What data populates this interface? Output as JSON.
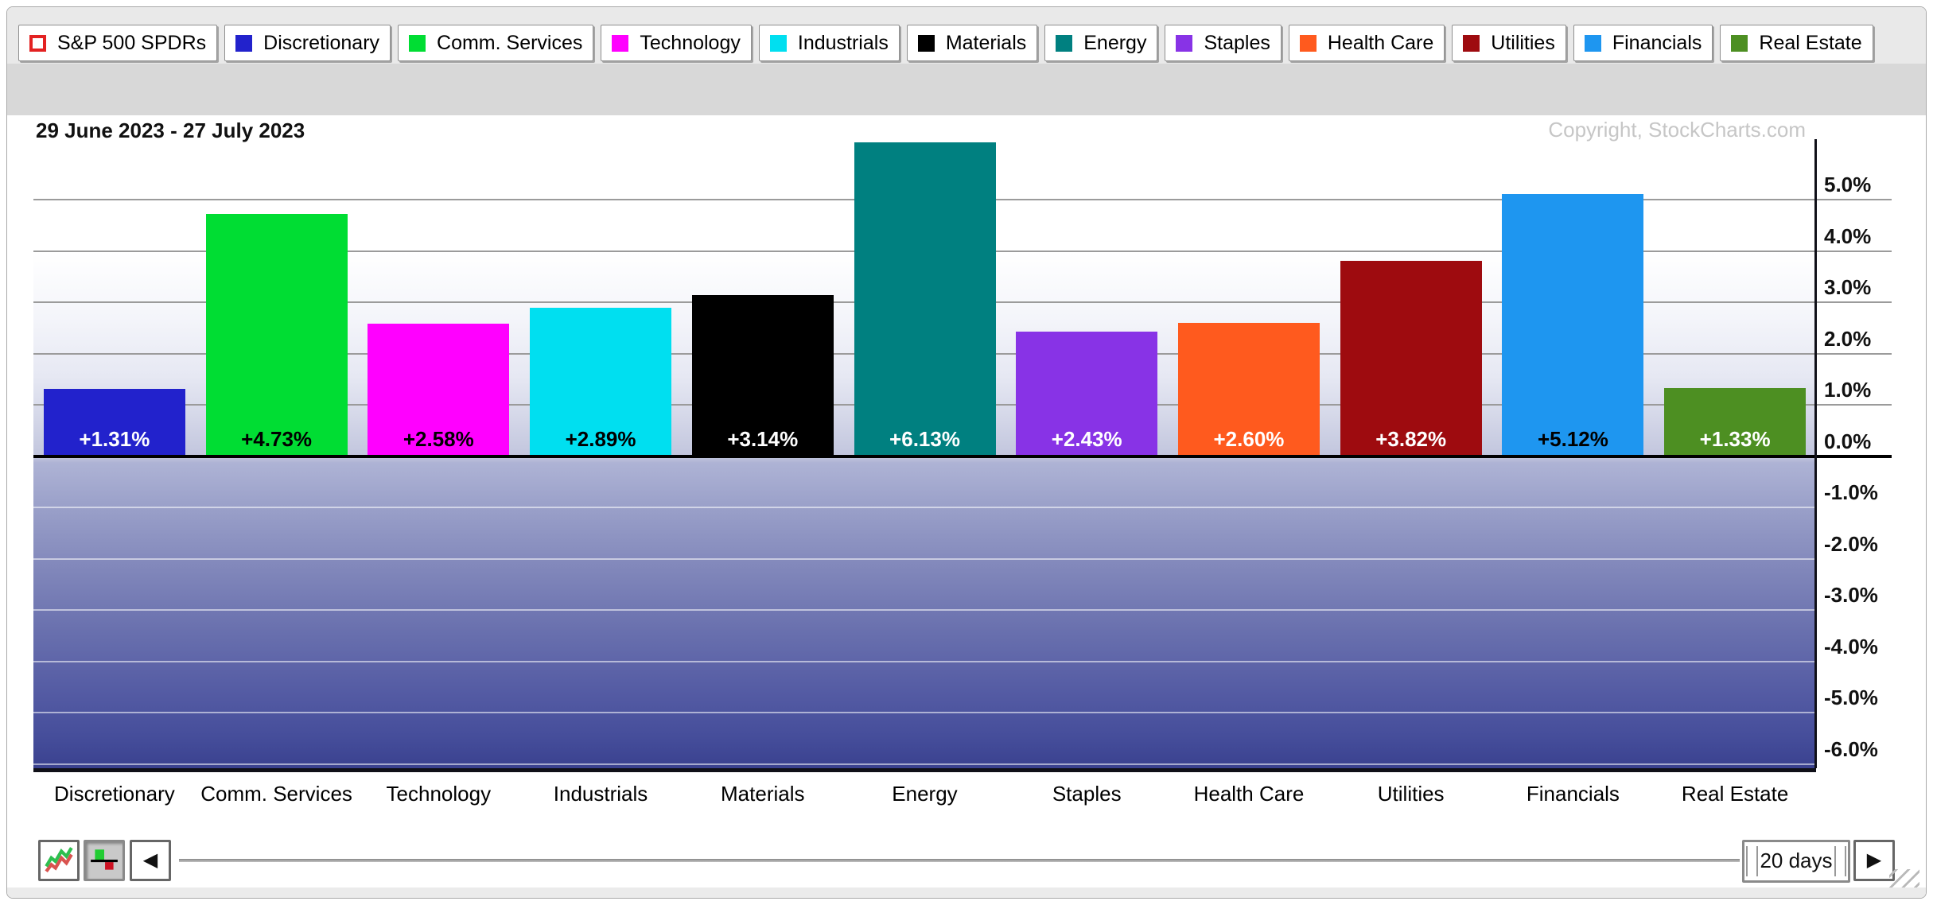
{
  "legend": {
    "items": [
      {
        "label": "S&P 500 SPDRs",
        "swatch_color": "#ffffff",
        "swatch_border": "#e32222",
        "filled": false
      },
      {
        "label": "Discretionary",
        "swatch_color": "#2222cc",
        "filled": true
      },
      {
        "label": "Comm. Services",
        "swatch_color": "#00dd33",
        "filled": true
      },
      {
        "label": "Technology",
        "swatch_color": "#ff00ff",
        "filled": true
      },
      {
        "label": "Industrials",
        "swatch_color": "#00dff0",
        "filled": true
      },
      {
        "label": "Materials",
        "swatch_color": "#000000",
        "filled": true
      },
      {
        "label": "Energy",
        "swatch_color": "#008080",
        "filled": true
      },
      {
        "label": "Staples",
        "swatch_color": "#8833e6",
        "filled": true
      },
      {
        "label": "Health Care",
        "swatch_color": "#ff5a1e",
        "filled": true
      },
      {
        "label": "Utilities",
        "swatch_color": "#9e0b0f",
        "filled": true
      },
      {
        "label": "Financials",
        "swatch_color": "#1e96f0",
        "filled": true
      },
      {
        "label": "Real Estate",
        "swatch_color": "#4d8f22",
        "filled": true
      }
    ]
  },
  "chart": {
    "date_range": "29 June 2023 - 27 July 2023",
    "copyright": "Copyright, StockCharts.com"
  },
  "chart_data": {
    "type": "bar",
    "title": "29 June 2023 - 27 July 2023",
    "categories": [
      "Discretionary",
      "Comm. Services",
      "Technology",
      "Industrials",
      "Materials",
      "Energy",
      "Staples",
      "Health Care",
      "Utilities",
      "Financials",
      "Real Estate"
    ],
    "values": [
      1.31,
      4.73,
      2.58,
      2.89,
      3.14,
      6.13,
      2.43,
      2.6,
      3.82,
      5.12,
      1.33
    ],
    "value_labels": [
      "+1.31%",
      "+4.73%",
      "+2.58%",
      "+2.89%",
      "+3.14%",
      "+6.13%",
      "+2.43%",
      "+2.60%",
      "+3.82%",
      "+5.12%",
      "+1.33%"
    ],
    "bar_colors": [
      "#2222cc",
      "#00dd33",
      "#ff00ff",
      "#00dff0",
      "#000000",
      "#008080",
      "#8833e6",
      "#ff5a1e",
      "#9e0b0f",
      "#1e96f0",
      "#4d8f22"
    ],
    "label_text_colors": [
      "#ffffff",
      "#000000",
      "#000000",
      "#000000",
      "#ffffff",
      "#ffffff",
      "#ffffff",
      "#ffffff",
      "#ffffff",
      "#000000",
      "#ffffff"
    ],
    "yticks": [
      5,
      4,
      3,
      2,
      1,
      0,
      -1,
      -2,
      -3,
      -4,
      -5,
      -6
    ],
    "ytick_labels": [
      "5.0%",
      "4.0%",
      "3.0%",
      "2.0%",
      "1.0%",
      "0.0%",
      "-1.0%",
      "-2.0%",
      "-3.0%",
      "-4.0%",
      "-5.0%",
      "-6.0%"
    ],
    "ylim": [
      -6.08,
      6.65
    ],
    "xlabel": "",
    "ylabel": "",
    "grid": true,
    "legend_position": "top",
    "units": "percent change"
  },
  "toolbar": {
    "line_mode_icon": "perf-line-chart-icon",
    "histogram_mode_icon": "histogram-chart-icon",
    "scroll_left_icon": "left-arrow-icon",
    "scroll_right_icon": "right-arrow-icon",
    "period_label": "20 days"
  }
}
